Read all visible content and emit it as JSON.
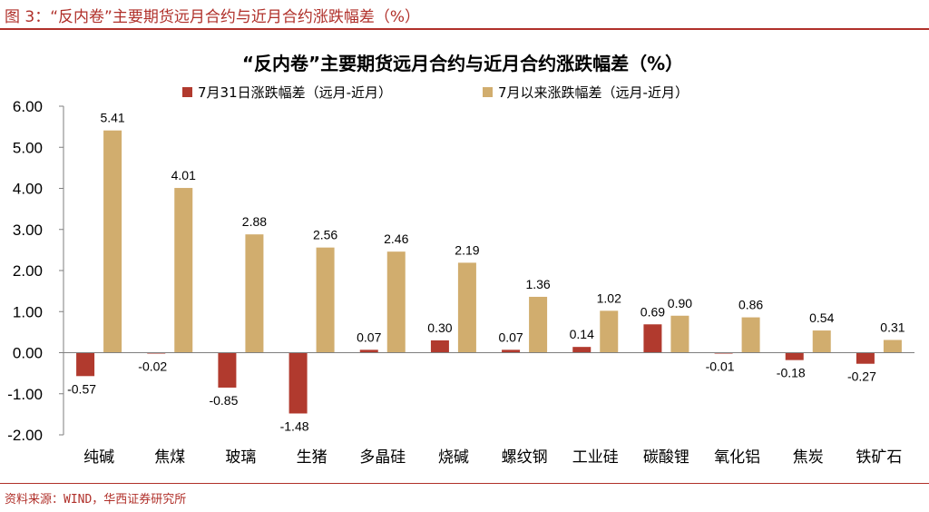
{
  "figure": {
    "caption": "图 3：“反内卷”主要期货远月合约与近月合约涨跌幅差（%）",
    "source": "资料来源：WIND，华西证券研究所"
  },
  "chart_data": {
    "type": "bar",
    "title": "“反内卷”主要期货远月合约与近月合约涨跌幅差（%）",
    "xlabel": "",
    "ylabel": "",
    "ylim": [
      -2,
      6
    ],
    "yticks": [
      "6.00",
      "5.00",
      "4.00",
      "3.00",
      "2.00",
      "1.00",
      "0.00",
      "-1.00",
      "-2.00"
    ],
    "categories": [
      "纯碱",
      "焦煤",
      "玻璃",
      "生猪",
      "多晶硅",
      "烧碱",
      "螺纹钢",
      "工业硅",
      "碳酸锂",
      "氧化铝",
      "焦炭",
      "铁矿石"
    ],
    "legend_position": "top",
    "series": [
      {
        "name": "7月31日涨跌幅差（远月-近月）",
        "color": "#b13a2e",
        "values": [
          -0.57,
          -0.02,
          -0.85,
          -1.48,
          0.07,
          0.3,
          0.07,
          0.14,
          0.69,
          -0.01,
          -0.18,
          -0.27
        ],
        "labels": [
          "-0.57",
          "-0.02",
          "-0.85",
          "-1.48",
          "0.07",
          "0.30",
          "0.07",
          "0.14",
          "0.69",
          "-0.01",
          "-0.18",
          "-0.27"
        ]
      },
      {
        "name": "7月以来涨跌幅差（远月-近月）",
        "color": "#d1ad6e",
        "values": [
          5.41,
          4.01,
          2.88,
          2.56,
          2.46,
          2.19,
          1.36,
          1.02,
          0.9,
          0.86,
          0.54,
          0.31
        ],
        "labels": [
          "5.41",
          "4.01",
          "2.88",
          "2.56",
          "2.46",
          "2.19",
          "1.36",
          "1.02",
          "0.90",
          "0.86",
          "0.54",
          "0.31"
        ]
      }
    ]
  }
}
